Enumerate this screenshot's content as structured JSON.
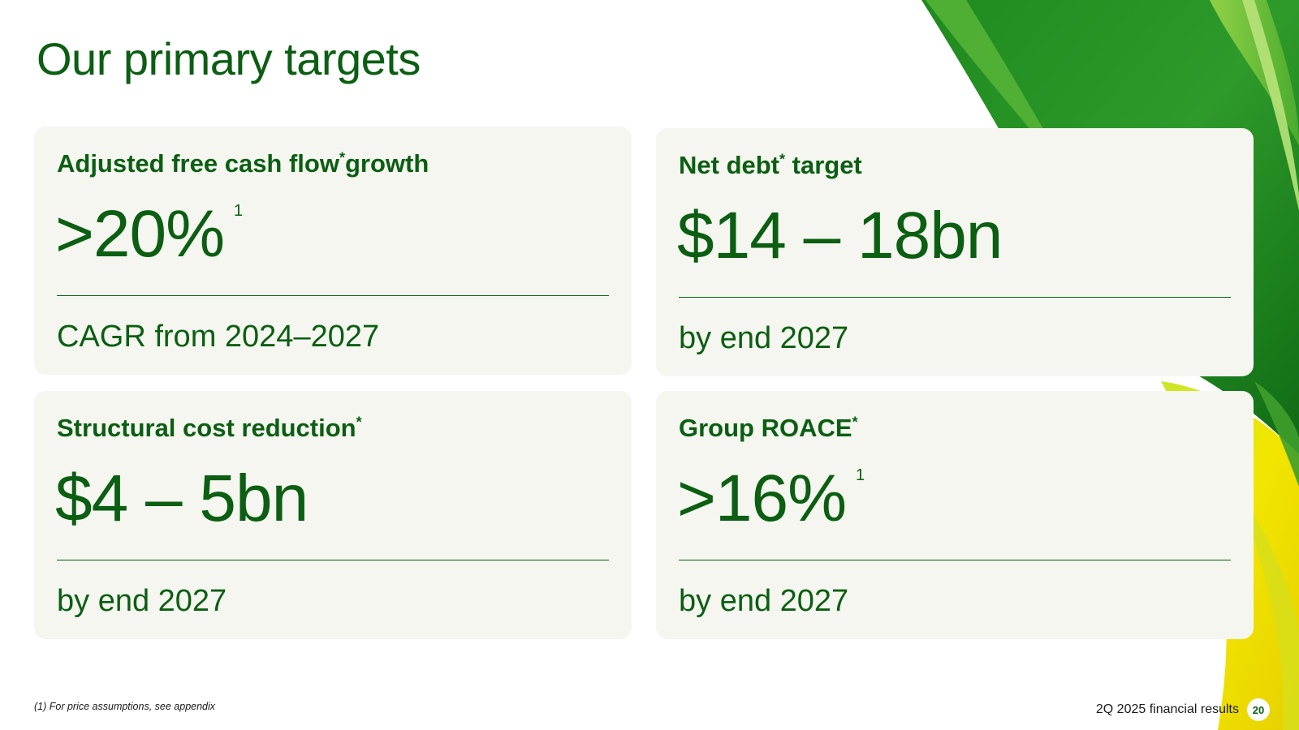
{
  "title": "Our primary targets",
  "cards": [
    {
      "heading": "Adjusted free cash flow",
      "heading_mark": "*",
      "heading_suffix": "growth",
      "value": ">20%",
      "value_footnote": "1",
      "subtext": "CAGR from 2024–2027"
    },
    {
      "heading": "Net debt",
      "heading_mark": "*",
      "heading_suffix": " target",
      "value": "$14 – 18bn",
      "value_footnote": "",
      "subtext": "by end 2027"
    },
    {
      "heading": "Structural cost reduction",
      "heading_mark": "*",
      "heading_suffix": "",
      "value": "$4 – 5bn",
      "value_footnote": "",
      "subtext": "by end 2027"
    },
    {
      "heading": "Group ROACE",
      "heading_mark": "*",
      "heading_suffix": "",
      "value": ">16%",
      "value_footnote": "1",
      "subtext": "by end 2027"
    }
  ],
  "footer": {
    "note": "(1) For price assumptions, see appendix",
    "label": "2Q 2025 financial results",
    "page_number": "20"
  },
  "colors": {
    "brand_green": "#0b5e12",
    "card_bg": "#f5f6f0",
    "accent_yellow": "#f2e600",
    "accent_light_green": "#7ac943"
  }
}
